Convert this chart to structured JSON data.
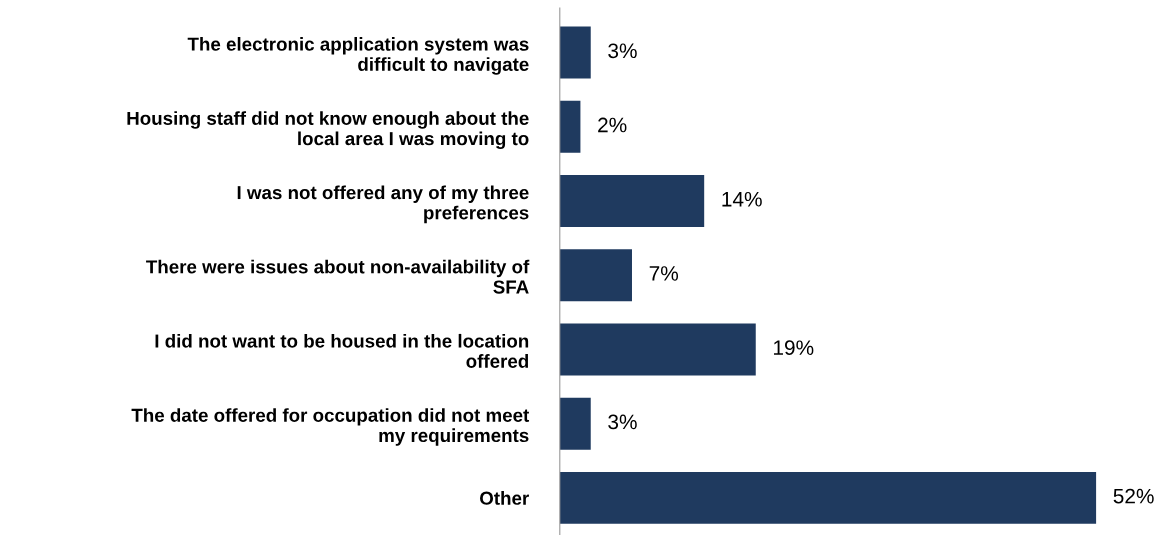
{
  "chart_data": {
    "type": "bar",
    "orientation": "horizontal",
    "categories": [
      "The electronic application system was\ndifficult to navigate",
      "Housing staff did not know enough about the\nlocal area I was moving to",
      "I was not offered any of my three\npreferences",
      "There were issues about non-availability of\nSFA",
      "I did not want to be housed in the location\noffered",
      "The date offered for occupation did not meet\nmy requirements",
      "Other"
    ],
    "values": [
      3,
      2,
      14,
      7,
      19,
      3,
      52
    ],
    "value_labels": [
      "3%",
      "2%",
      "14%",
      "7%",
      "19%",
      "3%",
      "52%"
    ],
    "color": "#1f3a5f",
    "tick_labels": "y",
    "grid": false,
    "legend": false
  }
}
